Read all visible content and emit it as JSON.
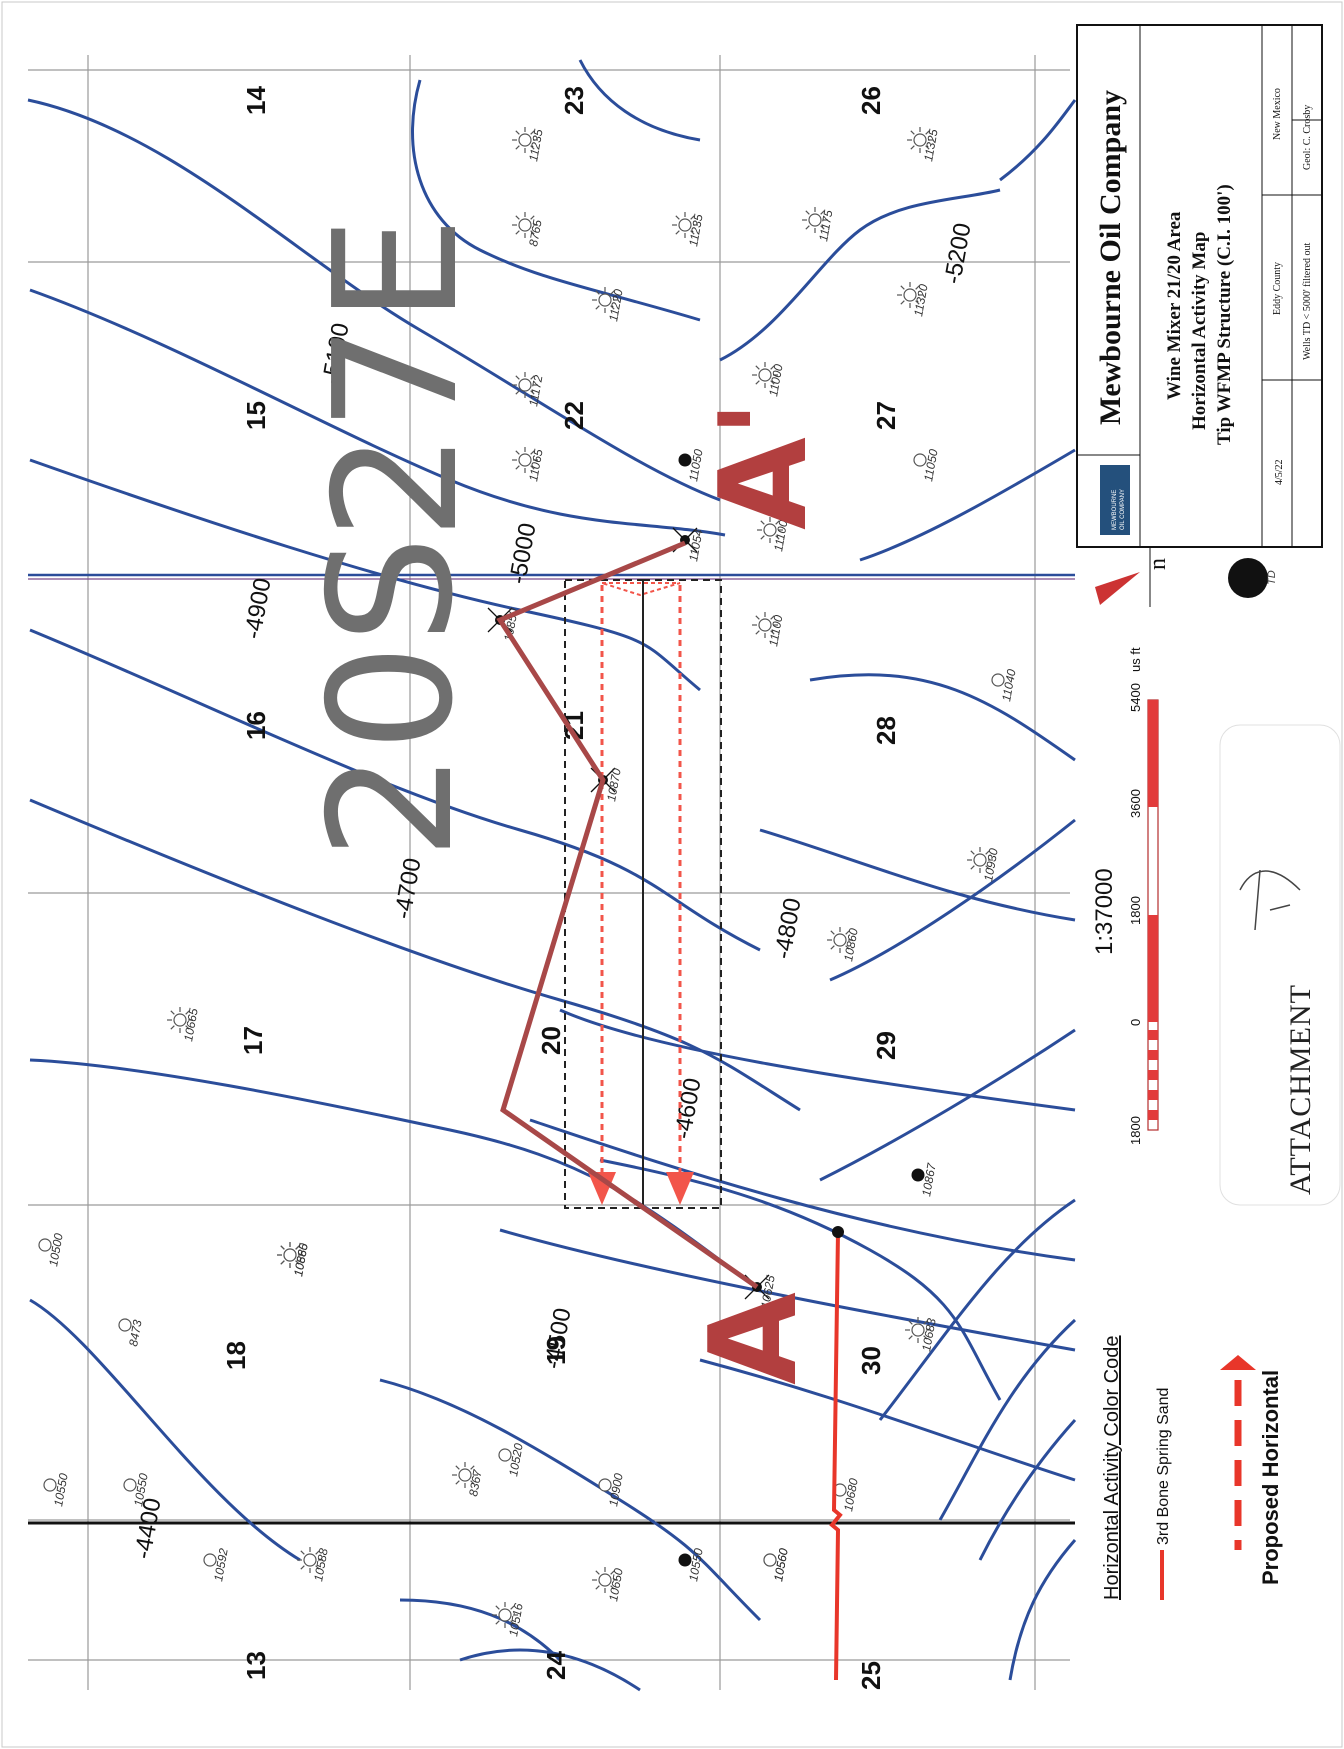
{
  "title_block": {
    "company": "Mewbourne Oil Company",
    "line1": "Wine Mixer 21/20 Area",
    "line2": "Horizontal Activity Map",
    "line3": "Tip WFMP Structure (C.I. 100')",
    "date": "4/5/22",
    "county": "Eddy County",
    "state": "New Mexico",
    "filter_note": "Wells TD < 5000' filtered out",
    "geologist": "Geol: C. Crosby",
    "logo_line1": "MEWBOURNE",
    "logo_line2": "OIL COMPANY"
  },
  "township": "20S",
  "range": "27E",
  "xsection": {
    "start": "A",
    "end": "A'"
  },
  "sections": [
    "14",
    "23",
    "26",
    "15",
    "22",
    "27",
    "16",
    "21",
    "28",
    "17",
    "20",
    "29",
    "18",
    "19",
    "30",
    "13",
    "24",
    "25"
  ],
  "contour_labels": [
    "-4400",
    "-4500",
    "-4600",
    "-4700",
    "-4800",
    "-4900",
    "-5000",
    "-5100",
    "-5200"
  ],
  "well_labels": [
    "11235",
    "8765",
    "11235",
    "11172",
    "11220",
    "11065",
    "11175",
    "11325",
    "11320",
    "11000",
    "11050",
    "11050",
    "11100",
    "11054",
    "11100",
    "11040",
    "10850",
    "10870",
    "10930",
    "10665",
    "10860",
    "10880",
    "10867",
    "10625",
    "10665",
    "10683",
    "8473",
    "10520",
    "10550",
    "10550",
    "8367",
    "10900",
    "10588",
    "10550",
    "10592",
    "10516",
    "10560",
    "10650",
    "10560",
    "10500",
    "10680"
  ],
  "scale": {
    "ratio": "1:37000",
    "unit": "us ft",
    "ticks": [
      "1800",
      "0",
      "1800",
      "3600",
      "5400"
    ]
  },
  "north_label": "n",
  "td_label": "TD",
  "legend": {
    "heading": "Horizontal Activity Color Code",
    "item1": "3rd Bone Spring Sand",
    "item2": "Proposed Horizontal"
  },
  "stamp": "ATTACHMENT",
  "colors": {
    "contour": "#2b4d9a",
    "xsection": "#b23f3f",
    "horizontal": "#e8362a",
    "grid": "#9a9a9a"
  }
}
